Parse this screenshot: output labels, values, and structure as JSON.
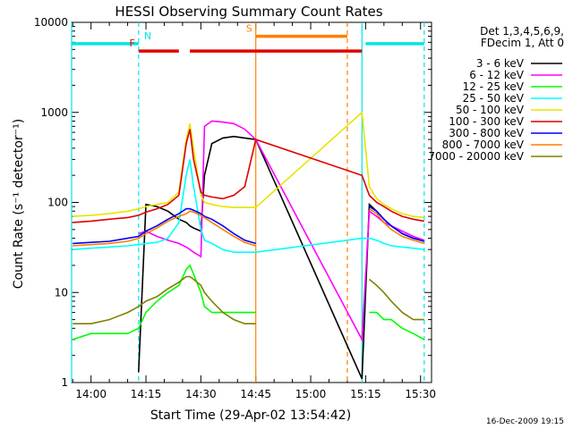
{
  "chart_data": {
    "type": "line",
    "title": "HESSI Observing Summary Count Rates",
    "xlabel": "Start Time (29-Apr-02 13:54:42)",
    "ylabel": "Count Rate (s⁻¹ detector⁻¹)",
    "yscale": "log",
    "xlim": [
      "13:54:42",
      "15:33"
    ],
    "ylim": [
      1,
      10000
    ],
    "x_ticks": [
      "14:00",
      "14:15",
      "14:30",
      "14:45",
      "15:00",
      "15:15",
      "15:30"
    ],
    "y_ticks": [
      "1",
      "10",
      "100",
      "1000",
      "10000"
    ],
    "legend_position": "right",
    "legend_header": [
      "Det 1,3,4,5,6,9,",
      "FDecim 1, Att 0"
    ],
    "footer_date": "16-Dec-2009 19:15",
    "flags": [
      {
        "label": "N",
        "color": "#00e5e5",
        "segments": [
          [
            "13:54:42",
            "14:13"
          ],
          [
            "15:15",
            "15:31"
          ]
        ]
      },
      {
        "label": "F",
        "color": "#e00000",
        "segments": [
          [
            "14:13",
            "14:24"
          ],
          [
            "14:27",
            "15:14"
          ]
        ]
      },
      {
        "label": "S",
        "color": "#ff7f00",
        "segments": [
          [
            "14:45",
            "15:10"
          ]
        ]
      }
    ],
    "vlines": [
      {
        "x": "13:54:42",
        "color": "#00e5e5",
        "style": "solid"
      },
      {
        "x": "14:13",
        "color": "#00e5e5",
        "style": "dashed"
      },
      {
        "x": "14:45",
        "color": "#ff7f00",
        "style": "solid"
      },
      {
        "x": "15:10",
        "color": "#ff7f00",
        "style": "dashed"
      },
      {
        "x": "15:14",
        "color": "#00e5e5",
        "style": "solid"
      },
      {
        "x": "15:31",
        "color": "#00e5e5",
        "style": "dashed"
      }
    ],
    "x": [
      "13:55",
      "14:00",
      "14:05",
      "14:10",
      "14:13",
      "14:15",
      "14:18",
      "14:21",
      "14:24",
      "14:26",
      "14:27",
      "14:28",
      "14:30",
      "14:31",
      "14:33",
      "14:36",
      "14:39",
      "14:42",
      "14:45",
      "15:14",
      "15:16",
      "15:18",
      "15:20",
      "15:22",
      "15:25",
      "15:28",
      "15:31"
    ],
    "series": [
      {
        "name": "3 - 6 keV",
        "color": "#000000",
        "values": [
          null,
          null,
          null,
          null,
          1.3,
          95,
          90,
          80,
          65,
          60,
          55,
          52,
          48,
          200,
          450,
          520,
          540,
          520,
          500,
          1.1,
          95,
          80,
          65,
          55,
          45,
          40,
          38
        ]
      },
      {
        "name": "6 - 12 keV",
        "color": "#ff00ff",
        "values": [
          null,
          null,
          null,
          null,
          45,
          48,
          42,
          38,
          35,
          32,
          30,
          28,
          25,
          700,
          800,
          780,
          750,
          650,
          500,
          3,
          80,
          70,
          60,
          55,
          48,
          42,
          38
        ]
      },
      {
        "name": "12 - 25 keV",
        "color": "#00ff00",
        "values": [
          3,
          3.5,
          3.5,
          3.5,
          4,
          6,
          8,
          10,
          12,
          18,
          20,
          16,
          10,
          7,
          6,
          6,
          6,
          6,
          6,
          null,
          6,
          6,
          5,
          5,
          4,
          3.5,
          3
        ]
      },
      {
        "name": "25 - 50 keV",
        "color": "#00ffff",
        "values": [
          30,
          31,
          32,
          33,
          34,
          35,
          36,
          40,
          60,
          200,
          300,
          150,
          50,
          38,
          35,
          30,
          28,
          28,
          28,
          40,
          40,
          38,
          35,
          33,
          32,
          31,
          30
        ]
      },
      {
        "name": "50 - 100 keV",
        "color": "#e5e500",
        "values": [
          70,
          72,
          75,
          80,
          85,
          90,
          95,
          100,
          130,
          500,
          750,
          400,
          120,
          100,
          95,
          90,
          88,
          88,
          88,
          1000,
          150,
          110,
          95,
          85,
          75,
          70,
          68
        ]
      },
      {
        "name": "100 - 300 keV",
        "color": "#e00000",
        "values": [
          60,
          62,
          65,
          68,
          72,
          78,
          85,
          95,
          120,
          450,
          650,
          300,
          130,
          120,
          115,
          110,
          120,
          150,
          500,
          200,
          120,
          100,
          90,
          80,
          70,
          65,
          62
        ]
      },
      {
        "name": "300 - 800 keV",
        "color": "#0000ff",
        "values": [
          35,
          36,
          37,
          40,
          42,
          48,
          55,
          65,
          75,
          85,
          85,
          82,
          75,
          70,
          65,
          55,
          45,
          38,
          35,
          null,
          90,
          80,
          65,
          55,
          45,
          40,
          37
        ]
      },
      {
        "name": "800 - 7000 keV",
        "color": "#ff7f00",
        "values": [
          33,
          34,
          35,
          37,
          40,
          45,
          52,
          62,
          70,
          75,
          80,
          78,
          72,
          68,
          60,
          50,
          42,
          36,
          33,
          null,
          85,
          75,
          60,
          50,
          42,
          38,
          35
        ]
      },
      {
        "name": "7000 - 20000 keV",
        "color": "#808000",
        "values": [
          4.5,
          4.5,
          5,
          6,
          7,
          8,
          9,
          11,
          13,
          15,
          15,
          14,
          12,
          10,
          8,
          6,
          5,
          4.5,
          4.5,
          null,
          14,
          12,
          10,
          8,
          6,
          5,
          5
        ]
      }
    ]
  }
}
